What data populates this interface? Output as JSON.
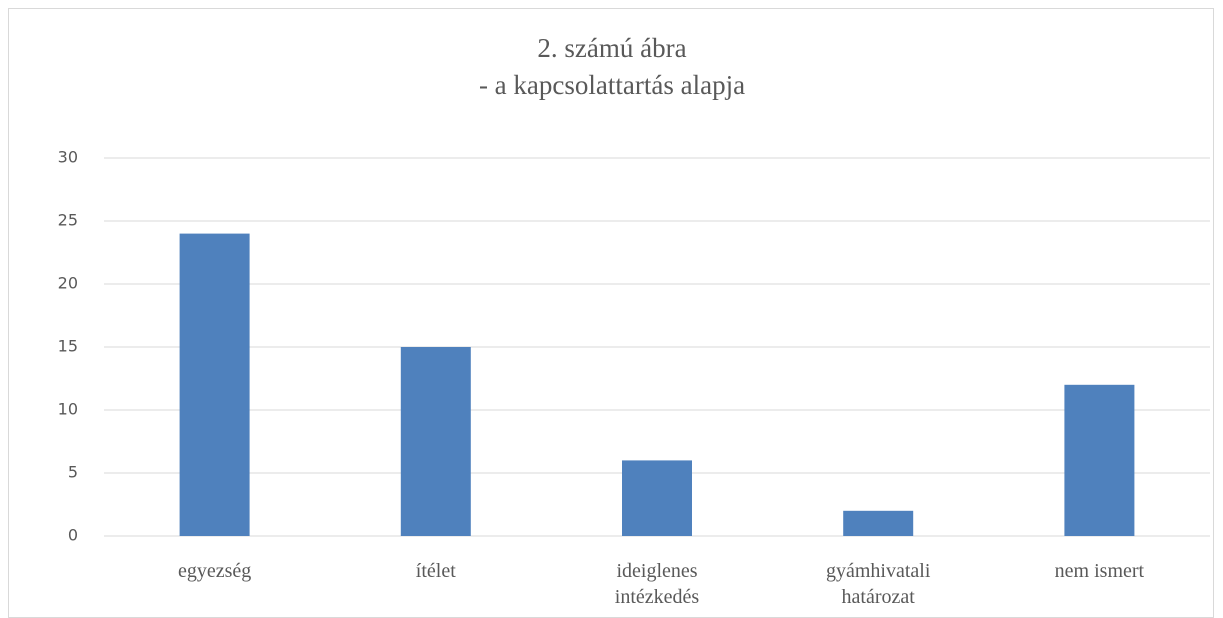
{
  "chart_data": {
    "type": "bar",
    "title": "2. számú ábra",
    "subtitle": "- a kapcsolattartás alapja",
    "categories": [
      "egyezség",
      "ítélet",
      "ideiglenes intézkedés",
      "gyámhivatali határozat",
      "nem ismert"
    ],
    "values": [
      24,
      15,
      6,
      2,
      12
    ],
    "color": "#4f81bd",
    "ylim": [
      0,
      30
    ],
    "yticks": [
      0,
      5,
      10,
      15,
      20,
      25,
      30
    ],
    "grid": true
  }
}
